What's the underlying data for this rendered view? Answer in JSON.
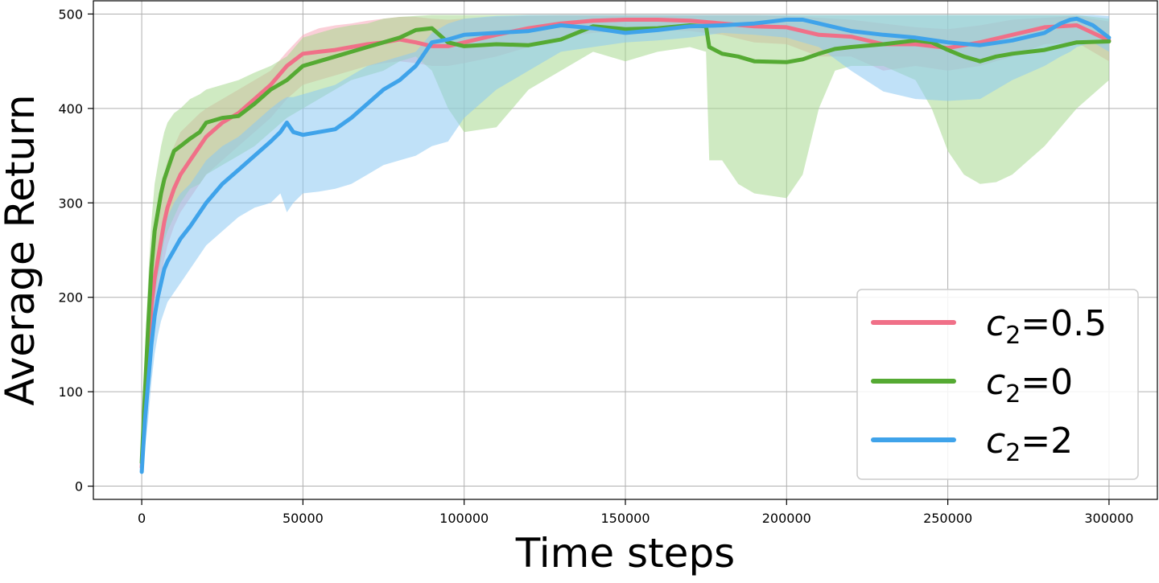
{
  "chart_data": {
    "type": "line",
    "title": "",
    "xlabel": "Time steps",
    "ylabel": "Average Return",
    "xlim": [
      -15000,
      315000
    ],
    "ylim": [
      -14,
      514
    ],
    "x_ticks": [
      0,
      50000,
      100000,
      150000,
      200000,
      250000,
      300000
    ],
    "y_ticks": [
      0,
      100,
      200,
      300,
      400,
      500
    ],
    "grid": true,
    "legend_position": "bottom-right",
    "series": [
      {
        "name": "c2=0.5",
        "legend_base": "c",
        "legend_sub": "2",
        "legend_value": "=0.5",
        "color": "#f07088",
        "band_color": "#f7a8b8",
        "x": [
          0,
          1000,
          2000,
          3000,
          4000,
          5000,
          6000,
          7000,
          8000,
          10000,
          12000,
          15000,
          18000,
          20000,
          25000,
          30000,
          35000,
          40000,
          45000,
          50000,
          55000,
          60000,
          65000,
          70000,
          75000,
          80000,
          85000,
          90000,
          95000,
          100000,
          110000,
          120000,
          130000,
          140000,
          150000,
          160000,
          170000,
          180000,
          190000,
          200000,
          210000,
          220000,
          230000,
          240000,
          250000,
          260000,
          270000,
          280000,
          290000,
          300000
        ],
        "y": [
          20,
          80,
          130,
          190,
          220,
          240,
          260,
          280,
          295,
          315,
          330,
          345,
          360,
          370,
          385,
          395,
          410,
          425,
          445,
          458,
          460,
          462,
          465,
          468,
          470,
          473,
          470,
          466,
          466,
          470,
          478,
          485,
          490,
          493,
          494,
          494,
          493,
          490,
          487,
          486,
          478,
          476,
          468,
          468,
          464,
          470,
          478,
          486,
          488,
          472
        ],
        "upper": [
          40,
          110,
          170,
          240,
          270,
          290,
          310,
          330,
          345,
          360,
          375,
          385,
          395,
          400,
          410,
          420,
          430,
          440,
          460,
          478,
          485,
          488,
          490,
          493,
          495,
          497,
          497,
          495,
          494,
          495,
          497,
          498,
          499,
          499,
          499,
          499,
          499,
          499,
          499,
          498,
          496,
          494,
          490,
          486,
          484,
          488,
          494,
          496,
          498,
          492
        ],
        "lower": [
          10,
          60,
          100,
          150,
          180,
          200,
          220,
          240,
          255,
          275,
          290,
          305,
          320,
          330,
          345,
          360,
          375,
          390,
          410,
          425,
          430,
          435,
          440,
          445,
          448,
          450,
          448,
          445,
          445,
          448,
          455,
          465,
          475,
          480,
          482,
          483,
          482,
          478,
          470,
          468,
          455,
          455,
          440,
          445,
          440,
          445,
          455,
          468,
          470,
          450
        ]
      },
      {
        "name": "c2=0",
        "legend_base": "c",
        "legend_sub": "2",
        "legend_value": "=0",
        "color": "#55aa33",
        "band_color": "#a8d890",
        "x": [
          0,
          1000,
          2000,
          3000,
          4000,
          5000,
          6000,
          7000,
          8000,
          10000,
          12000,
          15000,
          18000,
          20000,
          25000,
          30000,
          35000,
          40000,
          45000,
          50000,
          55000,
          60000,
          65000,
          70000,
          75000,
          80000,
          85000,
          90000,
          95000,
          100000,
          110000,
          120000,
          130000,
          140000,
          150000,
          160000,
          170000,
          175000,
          176000,
          180000,
          185000,
          190000,
          200000,
          205000,
          210000,
          215000,
          220000,
          230000,
          240000,
          245000,
          250000,
          255000,
          260000,
          265000,
          270000,
          280000,
          290000,
          300000
        ],
        "y": [
          25,
          100,
          170,
          230,
          270,
          290,
          310,
          325,
          335,
          355,
          360,
          368,
          375,
          385,
          390,
          392,
          405,
          420,
          430,
          445,
          450,
          455,
          460,
          465,
          470,
          475,
          483,
          485,
          470,
          466,
          468,
          467,
          473,
          487,
          484,
          485,
          488,
          487,
          465,
          458,
          455,
          450,
          449,
          452,
          458,
          463,
          465,
          468,
          472,
          470,
          462,
          455,
          450,
          455,
          458,
          462,
          470,
          471
        ],
        "upper": [
          50,
          140,
          220,
          280,
          320,
          340,
          360,
          375,
          385,
          395,
          400,
          410,
          415,
          420,
          425,
          430,
          438,
          445,
          455,
          475,
          480,
          485,
          488,
          490,
          495,
          497,
          498,
          499,
          499,
          499,
          499,
          499,
          499,
          499,
          499,
          499,
          499,
          499,
          499,
          499,
          499,
          499,
          499,
          499,
          499,
          499,
          499,
          499,
          499,
          499,
          499,
          499,
          499,
          499,
          499,
          499,
          499,
          495
        ],
        "lower": [
          10,
          60,
          110,
          160,
          200,
          220,
          240,
          260,
          270,
          285,
          300,
          315,
          320,
          330,
          340,
          350,
          360,
          375,
          390,
          400,
          410,
          420,
          430,
          435,
          440,
          450,
          455,
          440,
          400,
          375,
          380,
          420,
          440,
          460,
          450,
          460,
          465,
          460,
          345,
          345,
          320,
          310,
          305,
          330,
          400,
          440,
          445,
          445,
          430,
          400,
          355,
          330,
          320,
          322,
          330,
          360,
          400,
          430
        ]
      },
      {
        "name": "c2=2",
        "legend_base": "c",
        "legend_sub": "2",
        "legend_value": "=2",
        "color": "#3fa3ea",
        "band_color": "#8cc8f2",
        "x": [
          0,
          1000,
          2000,
          3000,
          4000,
          5000,
          6000,
          7000,
          8000,
          10000,
          12000,
          15000,
          18000,
          20000,
          25000,
          30000,
          35000,
          40000,
          43000,
          45000,
          47000,
          50000,
          55000,
          60000,
          65000,
          70000,
          75000,
          80000,
          85000,
          90000,
          95000,
          100000,
          110000,
          120000,
          130000,
          140000,
          150000,
          160000,
          170000,
          180000,
          190000,
          200000,
          205000,
          210000,
          220000,
          230000,
          240000,
          250000,
          260000,
          270000,
          280000,
          285000,
          288000,
          290000,
          295000,
          300000
        ],
        "y": [
          15,
          70,
          110,
          150,
          180,
          200,
          215,
          230,
          238,
          250,
          262,
          275,
          290,
          300,
          320,
          335,
          350,
          365,
          375,
          385,
          375,
          372,
          375,
          378,
          390,
          405,
          420,
          430,
          445,
          470,
          473,
          478,
          480,
          482,
          488,
          485,
          480,
          483,
          487,
          488,
          490,
          494,
          494,
          490,
          482,
          478,
          475,
          470,
          467,
          472,
          480,
          490,
          494,
          495,
          488,
          475
        ],
        "upper": [
          30,
          100,
          150,
          200,
          230,
          250,
          265,
          278,
          285,
          300,
          310,
          320,
          335,
          345,
          360,
          370,
          385,
          400,
          408,
          412,
          412,
          415,
          420,
          425,
          435,
          445,
          450,
          455,
          460,
          480,
          490,
          495,
          498,
          499,
          499,
          499,
          499,
          499,
          499,
          499,
          499,
          499,
          499,
          499,
          499,
          499,
          499,
          499,
          499,
          499,
          499,
          499,
          499,
          499,
          499,
          498
        ],
        "lower": [
          10,
          40,
          70,
          110,
          140,
          160,
          175,
          185,
          195,
          205,
          215,
          230,
          245,
          255,
          270,
          285,
          295,
          300,
          310,
          290,
          300,
          310,
          312,
          315,
          320,
          330,
          340,
          345,
          350,
          360,
          365,
          390,
          420,
          440,
          460,
          465,
          470,
          472,
          475,
          480,
          478,
          475,
          470,
          465,
          440,
          418,
          410,
          408,
          410,
          430,
          445,
          455,
          460,
          465,
          470,
          460
        ]
      }
    ]
  }
}
